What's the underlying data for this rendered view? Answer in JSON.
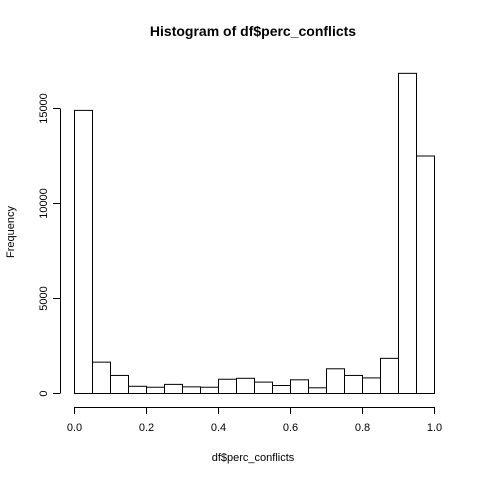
{
  "chart_data": {
    "type": "bar",
    "title": "Histogram of df$perc_conflicts",
    "xlabel": "df$perc_conflicts",
    "ylabel": "Frequency",
    "bin_width": 0.05,
    "x_bin_starts": [
      0.0,
      0.05,
      0.1,
      0.15,
      0.2,
      0.25,
      0.3,
      0.35,
      0.4,
      0.45,
      0.5,
      0.55,
      0.6,
      0.65,
      0.7,
      0.75,
      0.8,
      0.85,
      0.9,
      0.95
    ],
    "values": [
      14900,
      1650,
      950,
      380,
      330,
      480,
      350,
      330,
      750,
      800,
      600,
      420,
      720,
      300,
      1300,
      950,
      820,
      1850,
      16850,
      12500
    ],
    "xlim": [
      0,
      1
    ],
    "ylim": [
      0,
      17000
    ],
    "x_ticks": [
      {
        "value": 0.0,
        "label": "0.0"
      },
      {
        "value": 0.2,
        "label": "0.2"
      },
      {
        "value": 0.4,
        "label": "0.4"
      },
      {
        "value": 0.6,
        "label": "0.6"
      },
      {
        "value": 0.8,
        "label": "0.8"
      },
      {
        "value": 1.0,
        "label": "1.0"
      }
    ],
    "y_ticks": [
      {
        "value": 0,
        "label": "0"
      },
      {
        "value": 5000,
        "label": "5000"
      },
      {
        "value": 10000,
        "label": "10000"
      },
      {
        "value": 15000,
        "label": "15000"
      }
    ],
    "grid": false
  }
}
